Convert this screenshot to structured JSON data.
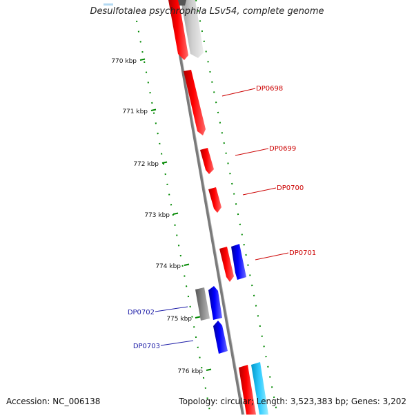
{
  "title": "Desulfotalea psychrophila LSv54, complete genome",
  "footer": {
    "accession": "Accession: NC_006138",
    "summary": "Topology: circular; Length: 3,523,383 bp; Genes: 3,202"
  },
  "ticks": [
    {
      "label": "770 kbp",
      "kbp": 770
    },
    {
      "label": "771 kbp",
      "kbp": 771
    },
    {
      "label": "772 kbp",
      "kbp": 772
    },
    {
      "label": "773 kbp",
      "kbp": 773
    },
    {
      "label": "774 kbp",
      "kbp": 774
    },
    {
      "label": "775 kbp",
      "kbp": 775
    },
    {
      "label": "776 kbp",
      "kbp": 776
    }
  ],
  "gene_labels": [
    {
      "name": "DP0698",
      "color": "#cc0000"
    },
    {
      "name": "DP0699",
      "color": "#cc0000"
    },
    {
      "name": "DP0700",
      "color": "#cc0000"
    },
    {
      "name": "DP0701",
      "color": "#cc0000"
    },
    {
      "name": "DP0702",
      "color": "#1a1aa6"
    },
    {
      "name": "DP0703",
      "color": "#1a1aa6"
    }
  ],
  "colors": {
    "forward_gene": "#ff0000",
    "reverse_gene": "#0000ff",
    "pseudo_gene": "#888888",
    "trna": "#33ccff",
    "backbone": "#808080",
    "gc_dots": "#008800"
  }
}
